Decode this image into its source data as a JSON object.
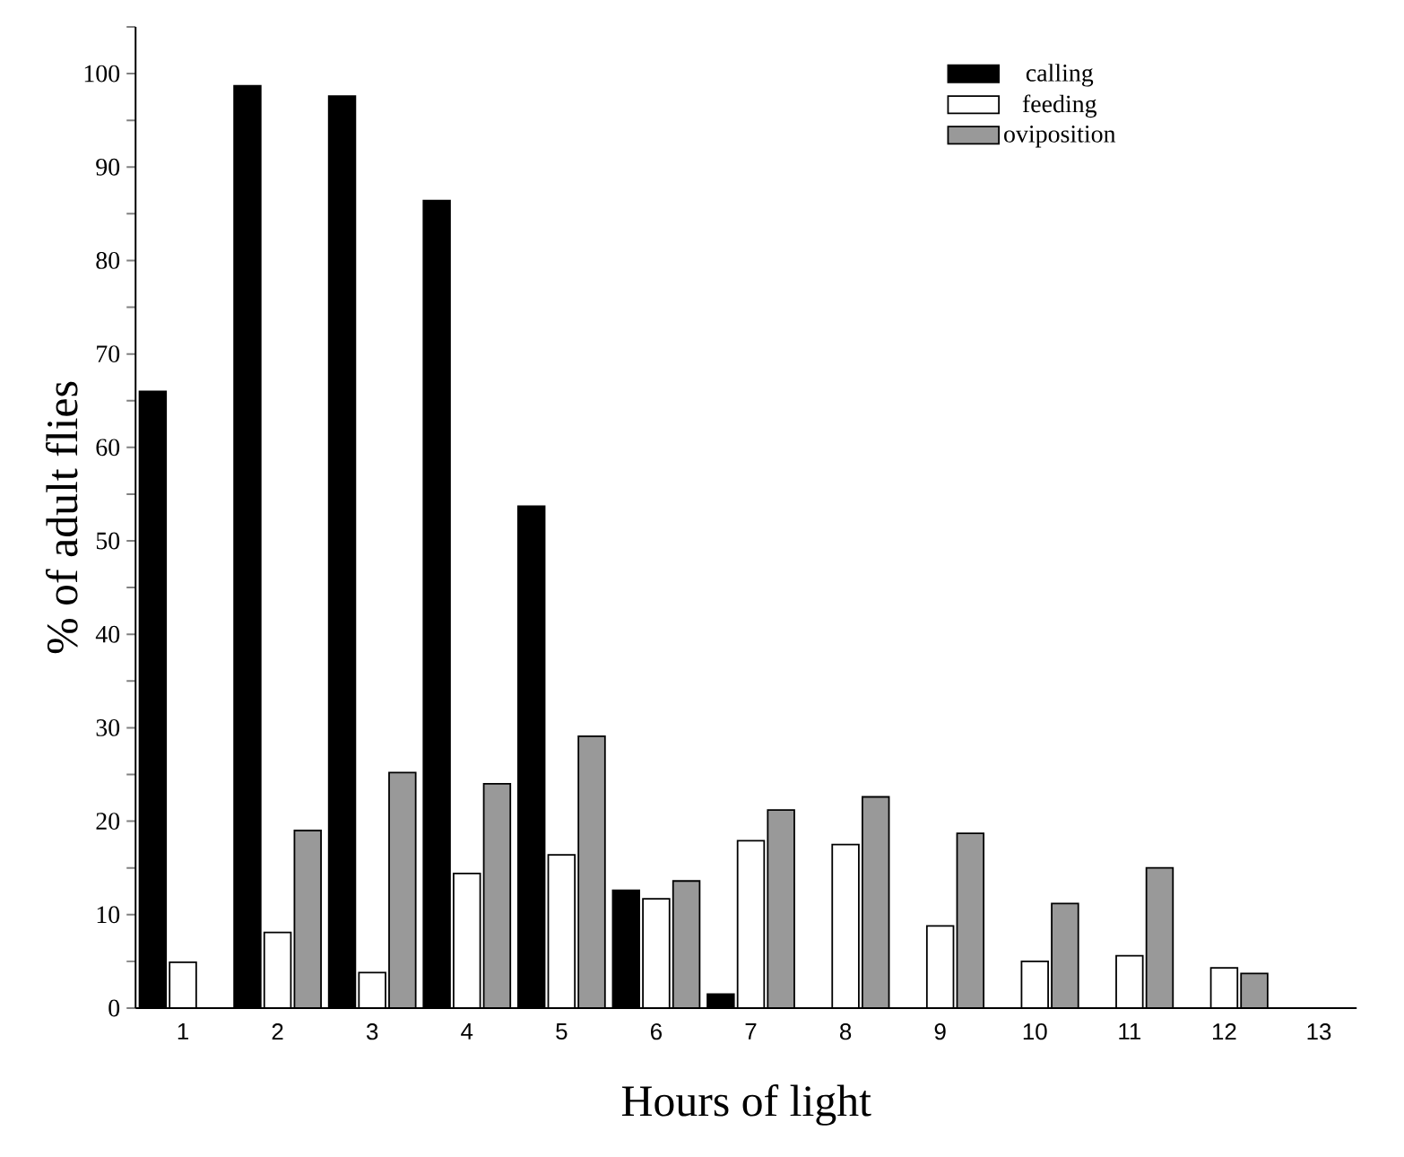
{
  "chart_data": {
    "type": "bar",
    "xlabel": "Hours of light",
    "ylabel": "% of adult flies",
    "categories": [
      "1",
      "2",
      "3",
      "4",
      "5",
      "6",
      "7",
      "8",
      "9",
      "10",
      "11",
      "12",
      "13"
    ],
    "series": [
      {
        "name": "calling",
        "color": "#000000",
        "values": [
          66,
          98.7,
          97.6,
          86.4,
          53.7,
          12.6,
          1.5,
          null,
          null,
          null,
          null,
          null,
          null
        ]
      },
      {
        "name": "feeding",
        "color": "#ffffff",
        "values": [
          4.9,
          8.1,
          3.8,
          14.4,
          16.4,
          11.7,
          17.9,
          17.5,
          8.8,
          5,
          5.6,
          4.3,
          null
        ]
      },
      {
        "name": "oviposition",
        "color": "#999999",
        "values": [
          null,
          19,
          25.2,
          24,
          29.1,
          13.6,
          21.2,
          22.6,
          18.7,
          11.2,
          15,
          3.7,
          null
        ]
      }
    ],
    "ylim": [
      0,
      105
    ],
    "yticks": [
      0,
      10,
      20,
      30,
      40,
      50,
      60,
      70,
      80,
      90,
      100,
      {
        "value": 5,
        "label": null
      },
      {
        "value": 15,
        "label": null
      },
      {
        "value": 25,
        "label": null
      },
      {
        "value": 35,
        "label": null
      },
      {
        "value": 45,
        "label": null
      },
      {
        "value": 55,
        "label": null
      },
      {
        "value": 65,
        "label": null
      },
      {
        "value": 75,
        "label": null
      },
      {
        "value": 85,
        "label": null
      },
      {
        "value": 95,
        "label": null
      },
      {
        "value": 105,
        "label": null
      }
    ],
    "legend": "top right",
    "grid": false
  }
}
